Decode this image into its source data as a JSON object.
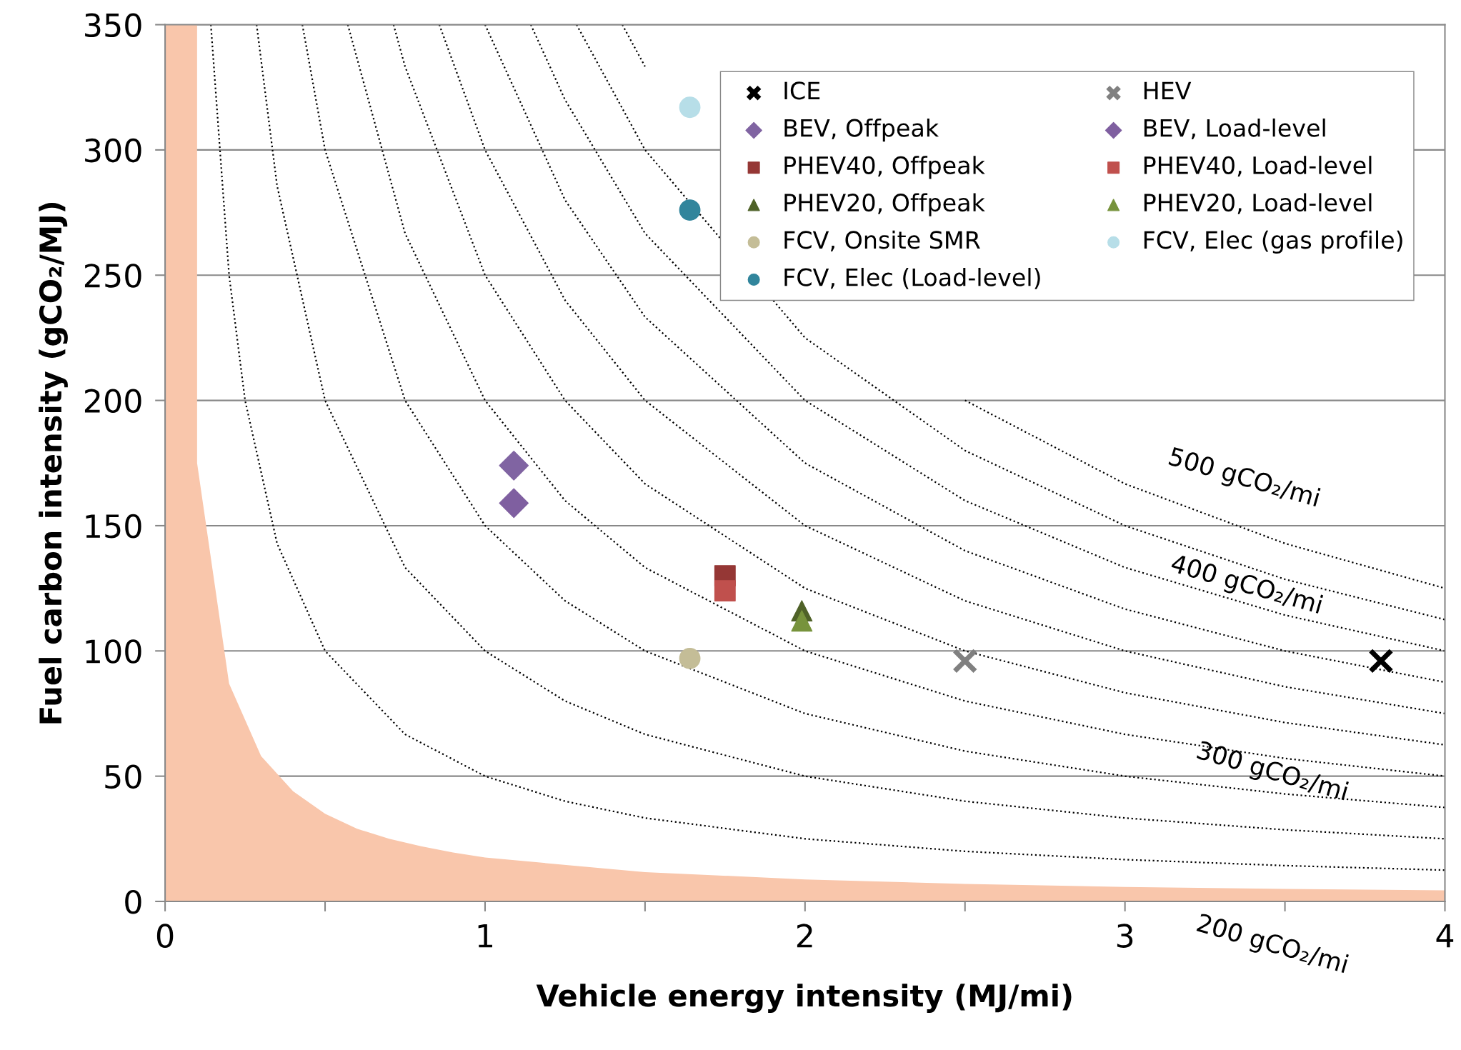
{
  "chart_data": {
    "type": "scatter",
    "xlabel": "Vehicle energy intensity (MJ/mi)",
    "ylabel": "Fuel carbon intensity (gCO₂/MJ)",
    "xlim": [
      0,
      4
    ],
    "ylim": [
      0,
      350
    ],
    "xticks": [
      0,
      {
        "value": 0.5,
        "label": null
      },
      1,
      {
        "value": 1.5,
        "label": null
      },
      2,
      {
        "value": 2.5,
        "label": null
      },
      3,
      {
        "value": 3.5,
        "label": null
      },
      4
    ],
    "yticks": [
      0,
      50,
      100,
      150,
      200,
      250,
      300,
      350
    ],
    "grid": "y",
    "legend": "top right",
    "annotations": [
      "500 gCO₂/mi",
      "400 gCO₂/mi",
      "300 gCO₂/mi",
      "200 gCO₂/mi"
    ],
    "series": [
      {
        "type": "area",
        "color": "#f9c6ab",
        "x": [
          0,
          0.1,
          0.1,
          0.2,
          0.3,
          0.4,
          0.5,
          0.6,
          0.7,
          0.8,
          0.9,
          1.0,
          1.5,
          2,
          2.5,
          3,
          3.5,
          4
        ],
        "values": [
          350,
          350,
          175,
          87,
          58,
          44,
          35,
          29,
          25,
          22,
          19.5,
          17.5,
          11.7,
          8.8,
          7,
          5.8,
          5,
          4.4
        ]
      },
      {
        "type": "line",
        "color": "#000000",
        "line_style": "dotted",
        "marker": "none",
        "x": [
          0.143,
          0.2,
          0.25,
          0.35,
          0.5,
          0.75,
          1,
          1.25,
          1.5,
          2,
          2.5,
          3,
          3.5,
          4
        ],
        "values": [
          350,
          250,
          200,
          142.9,
          100,
          66.7,
          50,
          40,
          33.3,
          25,
          20,
          16.7,
          14.3,
          12.5
        ]
      },
      {
        "type": "line",
        "color": "#000000",
        "line_style": "dotted",
        "marker": "none",
        "x": [
          0.286,
          0.35,
          0.5,
          0.75,
          1,
          1.25,
          1.5,
          2,
          2.5,
          3,
          3.5,
          4
        ],
        "values": [
          350,
          285.7,
          200,
          133.3,
          100,
          80,
          66.7,
          50,
          40,
          33.3,
          28.6,
          25
        ]
      },
      {
        "type": "line",
        "color": "#000000",
        "line_style": "dotted",
        "marker": "none",
        "x": [
          0.429,
          0.5,
          0.75,
          1,
          1.25,
          1.5,
          2,
          2.5,
          3,
          3.5,
          4
        ],
        "values": [
          350,
          300,
          200,
          150,
          120,
          100,
          75,
          60,
          50,
          42.9,
          37.5
        ]
      },
      {
        "type": "line",
        "color": "#000000",
        "line_style": "dotted",
        "marker": "none",
        "x": [
          0.571,
          0.75,
          1,
          1.25,
          1.5,
          2,
          2.5,
          3,
          3.5,
          4
        ],
        "values": [
          350,
          266.7,
          200,
          160,
          133.3,
          100,
          80,
          66.7,
          57.1,
          50
        ]
      },
      {
        "type": "line",
        "color": "#000000",
        "line_style": "dotted",
        "marker": "none",
        "x": [
          0.714,
          0.75,
          1,
          1.25,
          1.5,
          2,
          2.5,
          3,
          3.5,
          4
        ],
        "values": [
          350,
          333.3,
          250,
          200,
          166.7,
          125,
          100,
          83.3,
          71.4,
          62.5
        ]
      },
      {
        "type": "line",
        "color": "#000000",
        "line_style": "dotted",
        "marker": "none",
        "x": [
          0.857,
          1,
          1.25,
          1.5,
          2,
          2.5,
          3,
          3.5,
          4
        ],
        "values": [
          350,
          300,
          240,
          200,
          150,
          120,
          100,
          85.7,
          75
        ]
      },
      {
        "type": "line",
        "color": "#000000",
        "line_style": "dotted",
        "marker": "none",
        "x": [
          1,
          1.25,
          1.5,
          2,
          2.5,
          3,
          3.5,
          4
        ],
        "values": [
          350,
          280,
          233.3,
          175,
          140,
          116.7,
          100,
          87.5
        ]
      },
      {
        "type": "line",
        "color": "#000000",
        "line_style": "dotted",
        "marker": "none",
        "x": [
          1.143,
          1.25,
          1.5,
          2,
          2.5,
          3,
          3.5,
          4
        ],
        "values": [
          350,
          320,
          266.7,
          200,
          160,
          133.3,
          114.3,
          100
        ]
      },
      {
        "type": "line",
        "color": "#000000",
        "line_style": "dotted",
        "marker": "none",
        "x": [
          1.286,
          1.5,
          2,
          2.5,
          3,
          3.5,
          4
        ],
        "values": [
          350,
          300,
          225,
          180,
          150,
          128.6,
          112.5
        ]
      },
      {
        "type": "line",
        "color": "#000000",
        "line_style": "dotted",
        "marker": "none",
        "x": [
          1.429,
          1.5,
          2,
          2.5,
          3,
          3.5,
          4
        ],
        "values": [
          350,
          333.3,
          null,
          200,
          166.7,
          142.9,
          125
        ]
      },
      {
        "name": "ICE",
        "color": "#000000",
        "marker": "cross",
        "x": [
          3.8
        ],
        "values": [
          96
        ]
      },
      {
        "name": "HEV",
        "color": "#808080",
        "marker": "cross",
        "x": [
          2.5
        ],
        "values": [
          96
        ]
      },
      {
        "name": "BEV, Offpeak",
        "color": "#8064a2",
        "marker": "diamond",
        "x": [
          1.09
        ],
        "values": [
          174
        ]
      },
      {
        "name": "BEV, Load-level",
        "color": "#7f5fa0",
        "marker": "diamond",
        "x": [
          1.09
        ],
        "values": [
          159
        ]
      },
      {
        "name": "PHEV40, Offpeak",
        "color": "#953735",
        "marker": "square",
        "x": [
          1.75
        ],
        "values": [
          130
        ]
      },
      {
        "name": "PHEV40, Load-level",
        "color": "#c0504d",
        "marker": "square",
        "x": [
          1.75
        ],
        "values": [
          124
        ]
      },
      {
        "name": "PHEV20, Offpeak",
        "color": "#4f6228",
        "marker": "triangle",
        "x": [
          1.99
        ],
        "values": [
          116
        ]
      },
      {
        "name": "PHEV20, Load-level",
        "color": "#77933c",
        "marker": "triangle",
        "x": [
          1.99
        ],
        "values": [
          112
        ]
      },
      {
        "name": "FCV, Onsite SMR",
        "color": "#c4bd97",
        "marker": "circle",
        "x": [
          1.64
        ],
        "values": [
          97
        ]
      },
      {
        "name": "FCV, Elec (gas profile)",
        "color": "#b7dee8",
        "marker": "circle",
        "x": [
          1.64
        ],
        "values": [
          317
        ]
      },
      {
        "name": "FCV, Elec (Load-level)",
        "color": "#31859c",
        "marker": "circle",
        "x": [
          1.64
        ],
        "values": [
          276
        ]
      }
    ]
  }
}
